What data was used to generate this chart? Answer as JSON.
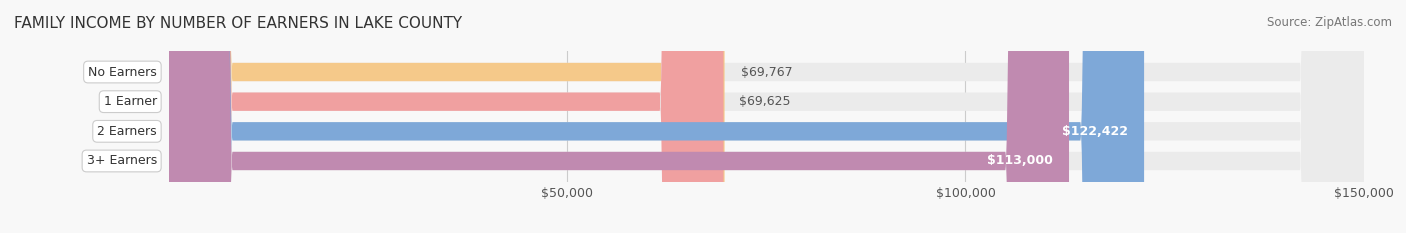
{
  "title": "FAMILY INCOME BY NUMBER OF EARNERS IN LAKE COUNTY",
  "source": "Source: ZipAtlas.com",
  "categories": [
    "No Earners",
    "1 Earner",
    "2 Earners",
    "3+ Earners"
  ],
  "values": [
    69767,
    69625,
    122422,
    113000
  ],
  "labels": [
    "$69,767",
    "$69,625",
    "$122,422",
    "$113,000"
  ],
  "bar_colors": [
    "#F5C98A",
    "#F0A0A0",
    "#7EA8D8",
    "#C08AB0"
  ],
  "bar_bg_color": "#EBEBEB",
  "label_bg_color": "#F5F5F5",
  "x_min": 0,
  "x_max": 150000,
  "x_ticks": [
    50000,
    100000,
    150000
  ],
  "x_tick_labels": [
    "$50,000",
    "$100,000",
    "$150,000"
  ],
  "title_fontsize": 11,
  "source_fontsize": 8.5,
  "bar_label_fontsize": 9,
  "category_fontsize": 9,
  "tick_fontsize": 9,
  "bar_height": 0.62,
  "figsize": [
    14.06,
    2.33
  ],
  "dpi": 100
}
